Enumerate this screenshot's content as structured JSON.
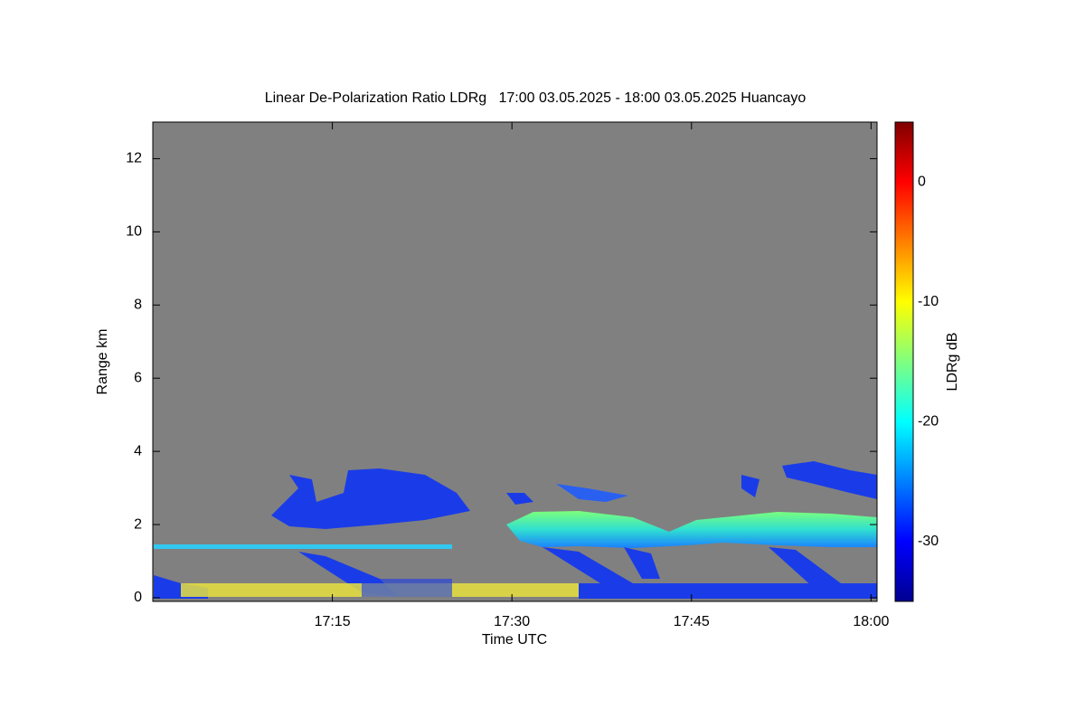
{
  "chart_data": {
    "type": "heatmap",
    "title": "Linear De-Polarization Ratio LDRg   17:00 03.05.2025 - 18:00 03.05.2025 Huancayo",
    "xlabel": "Time UTC",
    "ylabel": "Range km",
    "xlim": [
      0,
      60.5
    ],
    "xticks": [
      {
        "value": 15,
        "label": "17:15"
      },
      {
        "value": 30,
        "label": "17:30"
      },
      {
        "value": 45,
        "label": "17:45"
      },
      {
        "value": 60,
        "label": "18:00"
      }
    ],
    "ylim": [
      -0.1,
      13
    ],
    "yticks": [
      0,
      2,
      4,
      6,
      8,
      10,
      12
    ],
    "colorbar": {
      "label": "LDRg dB",
      "colormap": "jet",
      "zlim": [
        -35,
        5
      ],
      "ticks": [
        0,
        -10,
        -20,
        -30
      ]
    }
  }
}
